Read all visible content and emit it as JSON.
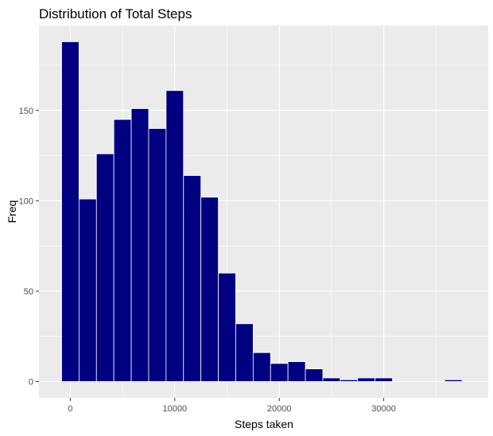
{
  "chart_data": {
    "type": "bar",
    "title": "Distribution of Total Steps",
    "xlabel": "Steps taken",
    "ylabel": "Freq",
    "bin_width": 1667,
    "bin_centers": [
      0,
      1667,
      3333,
      5000,
      6667,
      8333,
      10000,
      11667,
      13333,
      15000,
      16667,
      18333,
      20000,
      21667,
      23333,
      25000,
      26667,
      28333,
      30000,
      31667,
      33333,
      35000,
      36667
    ],
    "values": [
      188,
      101,
      126,
      145,
      151,
      140,
      161,
      114,
      102,
      60,
      32,
      16,
      10,
      11,
      7,
      2,
      1,
      2,
      2,
      0,
      0,
      0,
      1
    ],
    "xlim": [
      -3000,
      40000
    ],
    "ylim": [
      -9,
      197
    ],
    "x_ticks": [
      0,
      10000,
      20000,
      30000
    ],
    "x_tick_labels": [
      "0",
      "10000",
      "20000",
      "30000"
    ],
    "y_ticks": [
      0,
      50,
      100,
      150
    ],
    "y_tick_labels": [
      "0",
      "50",
      "100",
      "150"
    ],
    "grid": true,
    "bar_color": "#000080",
    "bar_outline": "#ffffff",
    "panel_background": "#ebebeb",
    "grid_color": "#ffffff"
  }
}
